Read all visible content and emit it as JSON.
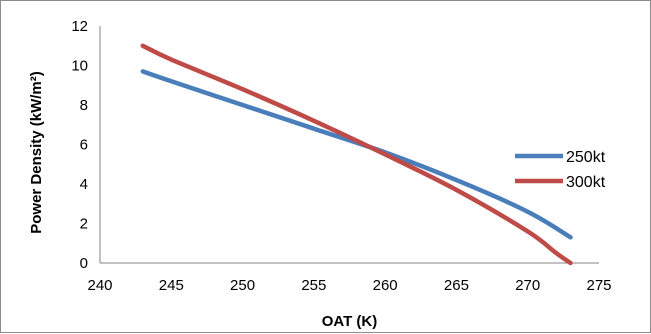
{
  "chart_data": {
    "type": "line",
    "xlabel": "OAT (K)",
    "ylabel": "Power Density (kW/m²)",
    "xlim": [
      240,
      275
    ],
    "ylim": [
      0,
      12
    ],
    "x_ticks": [
      "240",
      "245",
      "250",
      "255",
      "260",
      "265",
      "270",
      "275"
    ],
    "y_ticks": [
      "0",
      "2",
      "4",
      "6",
      "8",
      "10",
      "12"
    ],
    "grid": false,
    "legend": "right",
    "series": [
      {
        "name": "250kt",
        "color": "#4a7ebb",
        "x": [
          243,
          245,
          250,
          255,
          260,
          265,
          270,
          273
        ],
        "y": [
          9.7,
          9.2,
          8.0,
          6.8,
          5.6,
          4.2,
          2.6,
          1.3
        ]
      },
      {
        "name": "300kt",
        "color": "#be4b48",
        "x": [
          243,
          245,
          250,
          255,
          260,
          265,
          270,
          272,
          273
        ],
        "y": [
          11.0,
          10.3,
          8.8,
          7.2,
          5.5,
          3.7,
          1.6,
          0.5,
          0.0
        ]
      }
    ]
  }
}
